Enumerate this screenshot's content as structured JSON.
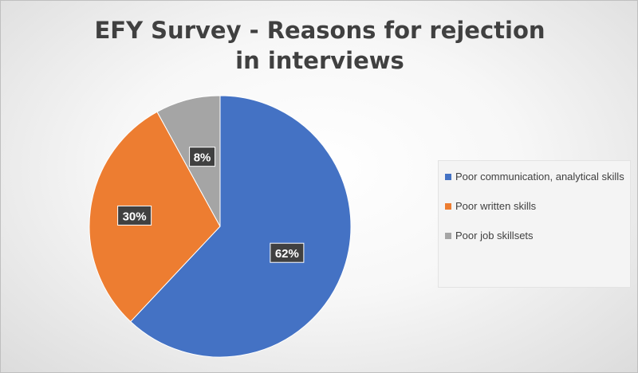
{
  "chart_data": {
    "type": "pie",
    "title": "EFY Survey - Reasons for rejection in interviews",
    "categories": [
      "Poor communication, analytical skills",
      "Poor written skills",
      "Poor job skillsets"
    ],
    "values": [
      62,
      30,
      8
    ],
    "labels": [
      "62%",
      "30%",
      "8%"
    ],
    "colors": [
      "#4472c4",
      "#ed7d31",
      "#a5a5a5"
    ],
    "legend_position": "right"
  }
}
